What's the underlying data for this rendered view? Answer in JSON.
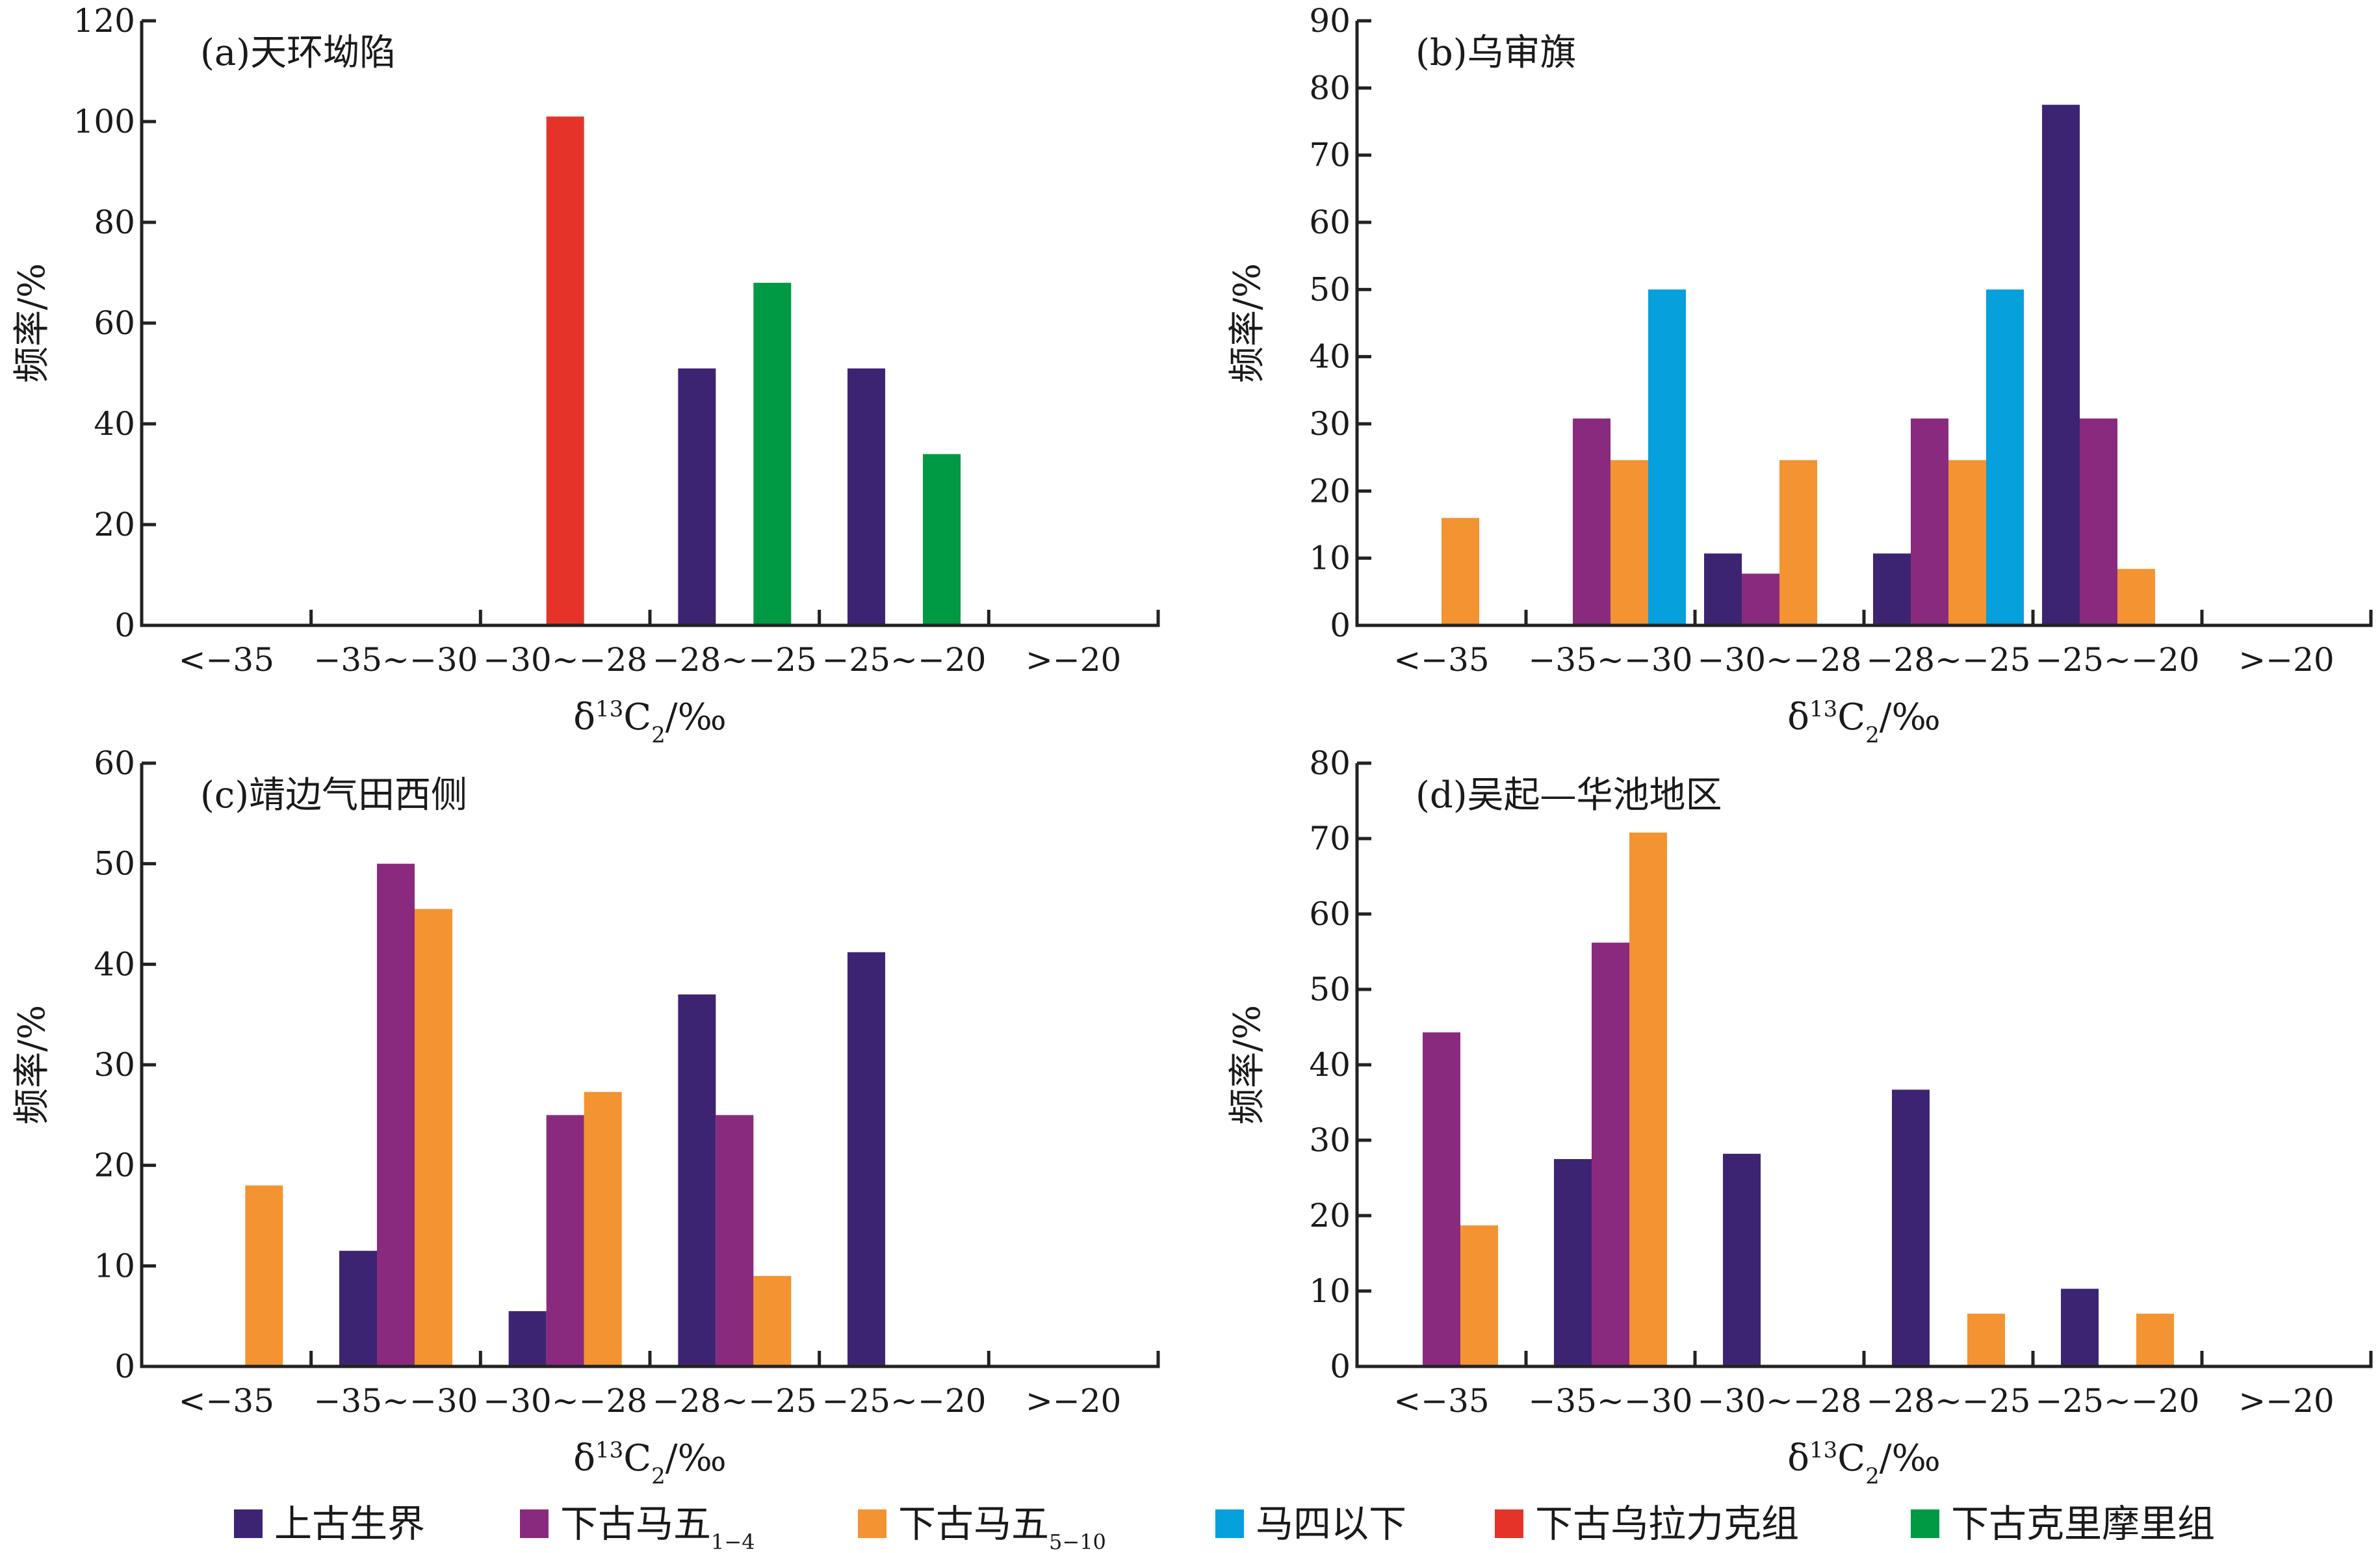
{
  "chart_data": [
    {
      "type": "bar",
      "title": "(a)天环坳陷",
      "xlabel_prefix": "δ",
      "xlabel_sup": "13",
      "xlabel_main": "C",
      "xlabel_sub": "2",
      "xlabel_unit": "/‰",
      "ylabel": "频率/%",
      "categories": [
        "<−35",
        "−35~−30",
        "−30~−28",
        "−28~−25",
        "−25~−20",
        ">−20"
      ],
      "ylim": [
        0,
        120
      ],
      "yticks": [
        0,
        20,
        40,
        60,
        80,
        100,
        120
      ],
      "series": [
        {
          "name": "上古生界",
          "values": [
            0,
            0,
            0,
            51,
            51,
            0
          ]
        },
        {
          "name": "下古乌拉力克组",
          "values": [
            0,
            0,
            101,
            0,
            0,
            0
          ]
        },
        {
          "name": "下古克里摩里组",
          "values": [
            0,
            0,
            0,
            68,
            34,
            0
          ]
        }
      ]
    },
    {
      "type": "bar",
      "title": "(b)乌审旗",
      "xlabel_prefix": "δ",
      "xlabel_sup": "13",
      "xlabel_main": "C",
      "xlabel_sub": "2",
      "xlabel_unit": "/‰",
      "ylabel": "频率/%",
      "categories": [
        "<−35",
        "−35~−30",
        "−30~−28",
        "−28~−25",
        "−25~−20",
        ">−20"
      ],
      "ylim": [
        0,
        90
      ],
      "yticks": [
        0,
        10,
        20,
        30,
        40,
        50,
        60,
        70,
        80,
        90
      ],
      "series": [
        {
          "name": "上古生界",
          "values": [
            0,
            0,
            10.7,
            10.7,
            77.5,
            0
          ]
        },
        {
          "name": "下古马五1-4",
          "values": [
            0,
            30.8,
            7.7,
            30.8,
            30.8,
            0
          ]
        },
        {
          "name": "下古马五5-10",
          "values": [
            16,
            24.6,
            24.6,
            24.6,
            8.4,
            0
          ]
        },
        {
          "name": "马四以下",
          "values": [
            0,
            50,
            0,
            50,
            0,
            0
          ]
        }
      ]
    },
    {
      "type": "bar",
      "title": "(c)靖边气田西侧",
      "xlabel_prefix": "δ",
      "xlabel_sup": "13",
      "xlabel_main": "C",
      "xlabel_sub": "2",
      "xlabel_unit": "/‰",
      "ylabel": "频率/%",
      "categories": [
        "<−35",
        "−35~−30",
        "−30~−28",
        "−28~−25",
        "−25~−20",
        ">−20"
      ],
      "ylim": [
        0,
        60
      ],
      "yticks": [
        0,
        10,
        20,
        30,
        40,
        50,
        60
      ],
      "series": [
        {
          "name": "上古生界",
          "values": [
            0,
            11.5,
            5.5,
            37,
            41.2,
            0
          ]
        },
        {
          "name": "下古马五1-4",
          "values": [
            0,
            50,
            25,
            25,
            0,
            0
          ]
        },
        {
          "name": "下古马五5-10",
          "values": [
            18,
            45.5,
            27.3,
            9,
            0,
            0
          ]
        }
      ]
    },
    {
      "type": "bar",
      "title": "(d)吴起—华池地区",
      "xlabel_prefix": "δ",
      "xlabel_sup": "13",
      "xlabel_main": "C",
      "xlabel_sub": "2",
      "xlabel_unit": "/‰",
      "ylabel": "频率/%",
      "categories": [
        "<−35",
        "−35~−30",
        "−30~−28",
        "−28~−25",
        "−25~−20",
        ">−20"
      ],
      "ylim": [
        0,
        80
      ],
      "yticks": [
        0,
        10,
        20,
        30,
        40,
        50,
        60,
        70,
        80
      ],
      "series": [
        {
          "name": "上古生界",
          "values": [
            0,
            27.5,
            28.2,
            36.7,
            10.3,
            0
          ]
        },
        {
          "name": "下古马五1-4",
          "values": [
            44.3,
            56.2,
            0,
            0,
            0,
            0
          ]
        },
        {
          "name": "下古马五5-10",
          "values": [
            18.7,
            70.8,
            0,
            7,
            7,
            0
          ]
        }
      ]
    }
  ],
  "legend": {
    "placement": "bottom",
    "items": [
      {
        "key": "上古生界",
        "label": "上古生界",
        "sub": "",
        "color": "#3d2472"
      },
      {
        "key": "下古马五1-4",
        "label": "下古马五",
        "sub": "1−4",
        "color": "#8a2a7e"
      },
      {
        "key": "下古马五5-10",
        "label": "下古马五",
        "sub": "5−10",
        "color": "#f39332"
      },
      {
        "key": "马四以下",
        "label": "马四以下",
        "sub": "",
        "color": "#06a0dc"
      },
      {
        "key": "下古乌拉力克组",
        "label": "下古乌拉力克组",
        "sub": "",
        "color": "#e6332a"
      },
      {
        "key": "下古克里摩里组",
        "label": "下古克里摩里组",
        "sub": "",
        "color": "#009a44"
      }
    ]
  }
}
